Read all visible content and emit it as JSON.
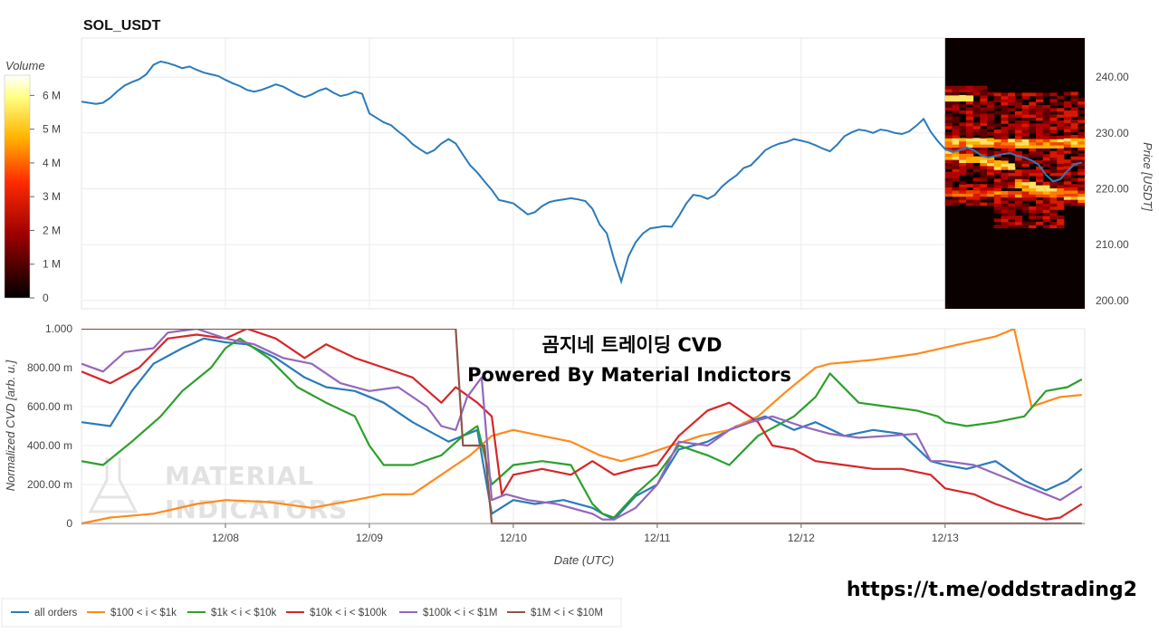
{
  "colors": {
    "all_orders": "#2b7bba",
    "tier_100_1k": "#ff8a1c",
    "tier_1k_10k": "#2ca02c",
    "tier_10k_100k": "#d62728",
    "tier_100k_1m": "#9467bd",
    "tier_1m_10m": "#8c564b"
  },
  "chart_data": [
    {
      "type": "line",
      "title": "SOL_USDT",
      "xlabel": "",
      "ylabel": "Price [USDT]",
      "ylim": [
        198.5,
        247
      ],
      "y_ticks": [
        "200.00",
        "210.00",
        "220.00",
        "230.00",
        "240.00"
      ],
      "x_range_days": [
        7.0,
        13.97
      ],
      "series": [
        {
          "color_key": "all_orders",
          "x": [
            7.0,
            7.05,
            7.1,
            7.15,
            7.2,
            7.25,
            7.3,
            7.35,
            7.4,
            7.45,
            7.5,
            7.55,
            7.6,
            7.65,
            7.7,
            7.75,
            7.8,
            7.85,
            7.9,
            7.95,
            8.0,
            8.05,
            8.1,
            8.15,
            8.2,
            8.25,
            8.3,
            8.35,
            8.4,
            8.45,
            8.5,
            8.55,
            8.6,
            8.65,
            8.7,
            8.75,
            8.8,
            8.85,
            8.9,
            8.95,
            9.0,
            9.05,
            9.1,
            9.15,
            9.2,
            9.25,
            9.3,
            9.35,
            9.4,
            9.45,
            9.5,
            9.55,
            9.6,
            9.65,
            9.7,
            9.75,
            9.8,
            9.85,
            9.9,
            9.95,
            10.0,
            10.05,
            10.1,
            10.15,
            10.2,
            10.25,
            10.3,
            10.35,
            10.4,
            10.45,
            10.5,
            10.55,
            10.6,
            10.65,
            10.7,
            10.75,
            10.8,
            10.85,
            10.9,
            10.95,
            11.0,
            11.05,
            11.1,
            11.15,
            11.2,
            11.25,
            11.3,
            11.35,
            11.4,
            11.45,
            11.5,
            11.55,
            11.6,
            11.65,
            11.7,
            11.75,
            11.8,
            11.85,
            11.9,
            11.95,
            12.0,
            12.05,
            12.1,
            12.15,
            12.2,
            12.25,
            12.3,
            12.35,
            12.4,
            12.45,
            12.5,
            12.55,
            12.6,
            12.65,
            12.7,
            12.75,
            12.8,
            12.85,
            12.9,
            12.95,
            13.0,
            13.05,
            13.1,
            13.15,
            13.2,
            13.25,
            13.3,
            13.35,
            13.4,
            13.45,
            13.5,
            13.55,
            13.6,
            13.65,
            13.7,
            13.75,
            13.8,
            13.85,
            13.9,
            13.95
          ],
          "y": [
            235.6,
            235.4,
            235.2,
            235.4,
            236.3,
            237.5,
            238.5,
            239.1,
            239.6,
            240.5,
            242.2,
            242.8,
            242.5,
            242.1,
            241.6,
            241.9,
            241.3,
            240.8,
            240.5,
            240.2,
            239.5,
            238.9,
            238.4,
            237.7,
            237.4,
            237.7,
            238.2,
            238.7,
            238.3,
            237.6,
            236.9,
            236.4,
            236.9,
            237.6,
            238.0,
            237.2,
            236.6,
            236.9,
            237.4,
            237.0,
            233.5,
            232.7,
            231.9,
            231.4,
            230.3,
            229.3,
            228.0,
            227.1,
            226.3,
            226.9,
            228.1,
            228.9,
            228.1,
            226.1,
            224.2,
            222.9,
            221.3,
            219.8,
            218.0,
            217.7,
            217.4,
            216.4,
            215.4,
            215.8,
            216.9,
            217.6,
            217.9,
            218.1,
            218.3,
            218.1,
            217.8,
            216.4,
            213.6,
            212.0,
            207.3,
            203.4,
            207.9,
            210.4,
            212.0,
            212.9,
            213.1,
            213.3,
            213.2,
            215.1,
            217.3,
            218.9,
            218.7,
            218.2,
            218.9,
            220.4,
            221.5,
            222.4,
            223.7,
            224.2,
            225.5,
            226.9,
            227.6,
            228.1,
            228.4,
            228.9,
            228.6,
            228.3,
            227.8,
            227.2,
            226.7,
            227.9,
            229.4,
            230.1,
            230.6,
            230.4,
            230.0,
            230.6,
            230.4,
            230.0,
            229.8,
            230.3,
            231.3,
            232.5,
            230.2,
            228.5,
            227.1,
            226.6,
            226.9,
            227.4,
            226.9,
            226.0,
            225.6,
            225.9,
            226.2,
            226.4,
            225.9,
            225.6,
            225.1,
            224.3,
            222.5,
            221.3,
            221.7,
            223.2,
            224.4,
            224.7
          ]
        }
      ]
    },
    {
      "type": "heatmap",
      "title": "Volume",
      "colorbar_ticks": [
        "0",
        "1 M",
        "2 M",
        "3 M",
        "4 M",
        "5 M",
        "6 M"
      ],
      "vmax": 6600000
    },
    {
      "type": "line",
      "title": "곰지네 트레이딩 CVD",
      "subtitle": "Powered By Material Indictors",
      "xlabel": "Date (UTC)",
      "ylabel": "Normalized CVD [arb. u.]",
      "ylim": [
        0,
        1
      ],
      "y_ticks": [
        "0",
        "200.00 m",
        "400.00 m",
        "600.00 m",
        "800.00 m",
        "1.000"
      ],
      "x_tick_labels": [
        "12/08",
        "12/09",
        "12/10",
        "12/11",
        "12/12",
        "12/13"
      ],
      "x_tick_values": [
        8,
        9,
        10,
        11,
        12,
        13
      ],
      "series": [
        {
          "name": "all orders",
          "color_key": "all_orders",
          "x": [
            7.0,
            7.2,
            7.35,
            7.5,
            7.7,
            7.85,
            8.0,
            8.15,
            8.35,
            8.55,
            8.7,
            8.9,
            9.1,
            9.3,
            9.55,
            9.75,
            9.85,
            10.0,
            10.15,
            10.35,
            10.55,
            10.62,
            10.7,
            10.85,
            11.0,
            11.15,
            11.35,
            11.55,
            11.75,
            11.95,
            12.1,
            12.3,
            12.5,
            12.7,
            12.9,
            13.0,
            13.15,
            13.35,
            13.55,
            13.7,
            13.85,
            13.95
          ],
          "y": [
            0.52,
            0.5,
            0.68,
            0.82,
            0.9,
            0.95,
            0.93,
            0.92,
            0.85,
            0.75,
            0.7,
            0.68,
            0.62,
            0.52,
            0.42,
            0.48,
            0.05,
            0.12,
            0.1,
            0.12,
            0.08,
            0.05,
            0.02,
            0.14,
            0.2,
            0.38,
            0.42,
            0.5,
            0.55,
            0.48,
            0.52,
            0.45,
            0.48,
            0.46,
            0.32,
            0.3,
            0.28,
            0.32,
            0.22,
            0.17,
            0.22,
            0.28
          ]
        },
        {
          "name": "$100 < i < $1k",
          "color_key": "tier_100_1k",
          "x": [
            7.0,
            7.2,
            7.5,
            7.8,
            8.0,
            8.3,
            8.6,
            8.9,
            9.1,
            9.3,
            9.5,
            9.7,
            9.85,
            10.0,
            10.2,
            10.4,
            10.6,
            10.75,
            10.9,
            11.1,
            11.3,
            11.5,
            11.7,
            11.9,
            12.1,
            12.2,
            12.5,
            12.8,
            13.1,
            13.35,
            13.48,
            13.6,
            13.8,
            13.95
          ],
          "y": [
            0.0,
            0.03,
            0.05,
            0.1,
            0.12,
            0.11,
            0.08,
            0.12,
            0.15,
            0.15,
            0.25,
            0.35,
            0.45,
            0.48,
            0.45,
            0.42,
            0.35,
            0.32,
            0.35,
            0.4,
            0.45,
            0.48,
            0.55,
            0.68,
            0.8,
            0.82,
            0.84,
            0.87,
            0.92,
            0.96,
            1.0,
            0.6,
            0.65,
            0.66
          ]
        },
        {
          "name": "$1k < i < $10k",
          "color_key": "tier_1k_10k",
          "x": [
            7.0,
            7.15,
            7.35,
            7.55,
            7.7,
            7.9,
            8.0,
            8.1,
            8.3,
            8.5,
            8.7,
            8.9,
            9.0,
            9.1,
            9.3,
            9.5,
            9.65,
            9.75,
            9.85,
            10.0,
            10.2,
            10.4,
            10.55,
            10.62,
            10.7,
            10.85,
            11.0,
            11.15,
            11.35,
            11.5,
            11.7,
            11.95,
            12.1,
            12.2,
            12.4,
            12.6,
            12.8,
            12.95,
            13.0,
            13.15,
            13.35,
            13.55,
            13.7,
            13.85,
            13.95
          ],
          "y": [
            0.32,
            0.3,
            0.42,
            0.55,
            0.68,
            0.8,
            0.9,
            0.95,
            0.85,
            0.7,
            0.62,
            0.55,
            0.4,
            0.3,
            0.3,
            0.35,
            0.45,
            0.5,
            0.2,
            0.3,
            0.32,
            0.3,
            0.1,
            0.05,
            0.03,
            0.15,
            0.25,
            0.4,
            0.35,
            0.3,
            0.45,
            0.55,
            0.65,
            0.77,
            0.62,
            0.6,
            0.58,
            0.55,
            0.52,
            0.5,
            0.52,
            0.55,
            0.68,
            0.7,
            0.74
          ]
        },
        {
          "name": "$10k < i < $100k",
          "color_key": "tier_10k_100k",
          "x": [
            7.0,
            7.2,
            7.4,
            7.6,
            7.8,
            8.0,
            8.15,
            8.35,
            8.55,
            8.7,
            8.9,
            9.1,
            9.3,
            9.5,
            9.6,
            9.75,
            9.85,
            9.92,
            10.0,
            10.2,
            10.4,
            10.55,
            10.7,
            10.85,
            11.0,
            11.15,
            11.35,
            11.5,
            11.7,
            11.8,
            11.95,
            12.1,
            12.3,
            12.5,
            12.7,
            12.9,
            13.0,
            13.2,
            13.35,
            13.55,
            13.7,
            13.8,
            13.95
          ],
          "y": [
            0.78,
            0.72,
            0.8,
            0.95,
            0.97,
            0.95,
            1.0,
            0.95,
            0.85,
            0.92,
            0.85,
            0.8,
            0.75,
            0.62,
            0.7,
            0.62,
            0.55,
            0.15,
            0.25,
            0.28,
            0.25,
            0.32,
            0.25,
            0.28,
            0.3,
            0.45,
            0.58,
            0.62,
            0.52,
            0.4,
            0.38,
            0.32,
            0.3,
            0.28,
            0.28,
            0.25,
            0.18,
            0.15,
            0.1,
            0.05,
            0.02,
            0.03,
            0.1
          ]
        },
        {
          "name": "$100k < i < $1M",
          "color_key": "tier_100k_1m",
          "x": [
            7.0,
            7.15,
            7.3,
            7.5,
            7.6,
            7.8,
            8.0,
            8.2,
            8.4,
            8.6,
            8.8,
            9.0,
            9.2,
            9.4,
            9.5,
            9.6,
            9.68,
            9.78,
            9.85,
            9.95,
            10.1,
            10.3,
            10.55,
            10.62,
            10.7,
            10.85,
            11.0,
            11.15,
            11.35,
            11.5,
            11.65,
            11.8,
            12.0,
            12.2,
            12.4,
            12.6,
            12.8,
            12.9,
            13.0,
            13.2,
            13.4,
            13.6,
            13.8,
            13.95
          ],
          "y": [
            0.82,
            0.78,
            0.88,
            0.9,
            0.98,
            1.0,
            0.95,
            0.92,
            0.85,
            0.82,
            0.72,
            0.68,
            0.7,
            0.6,
            0.5,
            0.48,
            0.65,
            0.75,
            0.12,
            0.15,
            0.12,
            0.1,
            0.05,
            0.02,
            0.02,
            0.08,
            0.2,
            0.42,
            0.4,
            0.48,
            0.52,
            0.55,
            0.5,
            0.46,
            0.44,
            0.45,
            0.46,
            0.32,
            0.32,
            0.3,
            0.24,
            0.18,
            0.12,
            0.19
          ]
        },
        {
          "name": "$1M < i < $10M",
          "color_key": "tier_1m_10m",
          "x": [
            7.0,
            9.6,
            9.65,
            9.8,
            9.85,
            9.95,
            13.95
          ],
          "y": [
            1.0,
            1.0,
            0.4,
            0.4,
            0.0,
            0.0,
            0.0
          ]
        }
      ]
    }
  ],
  "legend": {
    "placement": "bottom-left",
    "items": [
      {
        "label": "all orders",
        "color_key": "all_orders"
      },
      {
        "label": "$100 < i < $1k",
        "color_key": "tier_100_1k"
      },
      {
        "label": "$1k < i < $10k",
        "color_key": "tier_1k_10k"
      },
      {
        "label": "$10k < i < $100k",
        "color_key": "tier_10k_100k"
      },
      {
        "label": "$100k < i < $1M",
        "color_key": "tier_100k_1m"
      },
      {
        "label": "$1M < i < $10M",
        "color_key": "tier_1m_10m"
      }
    ]
  },
  "watermark": {
    "line1": "MATERIAL",
    "line2": "INDICATORS"
  },
  "footer_url": "https://t.me/oddstrading2"
}
